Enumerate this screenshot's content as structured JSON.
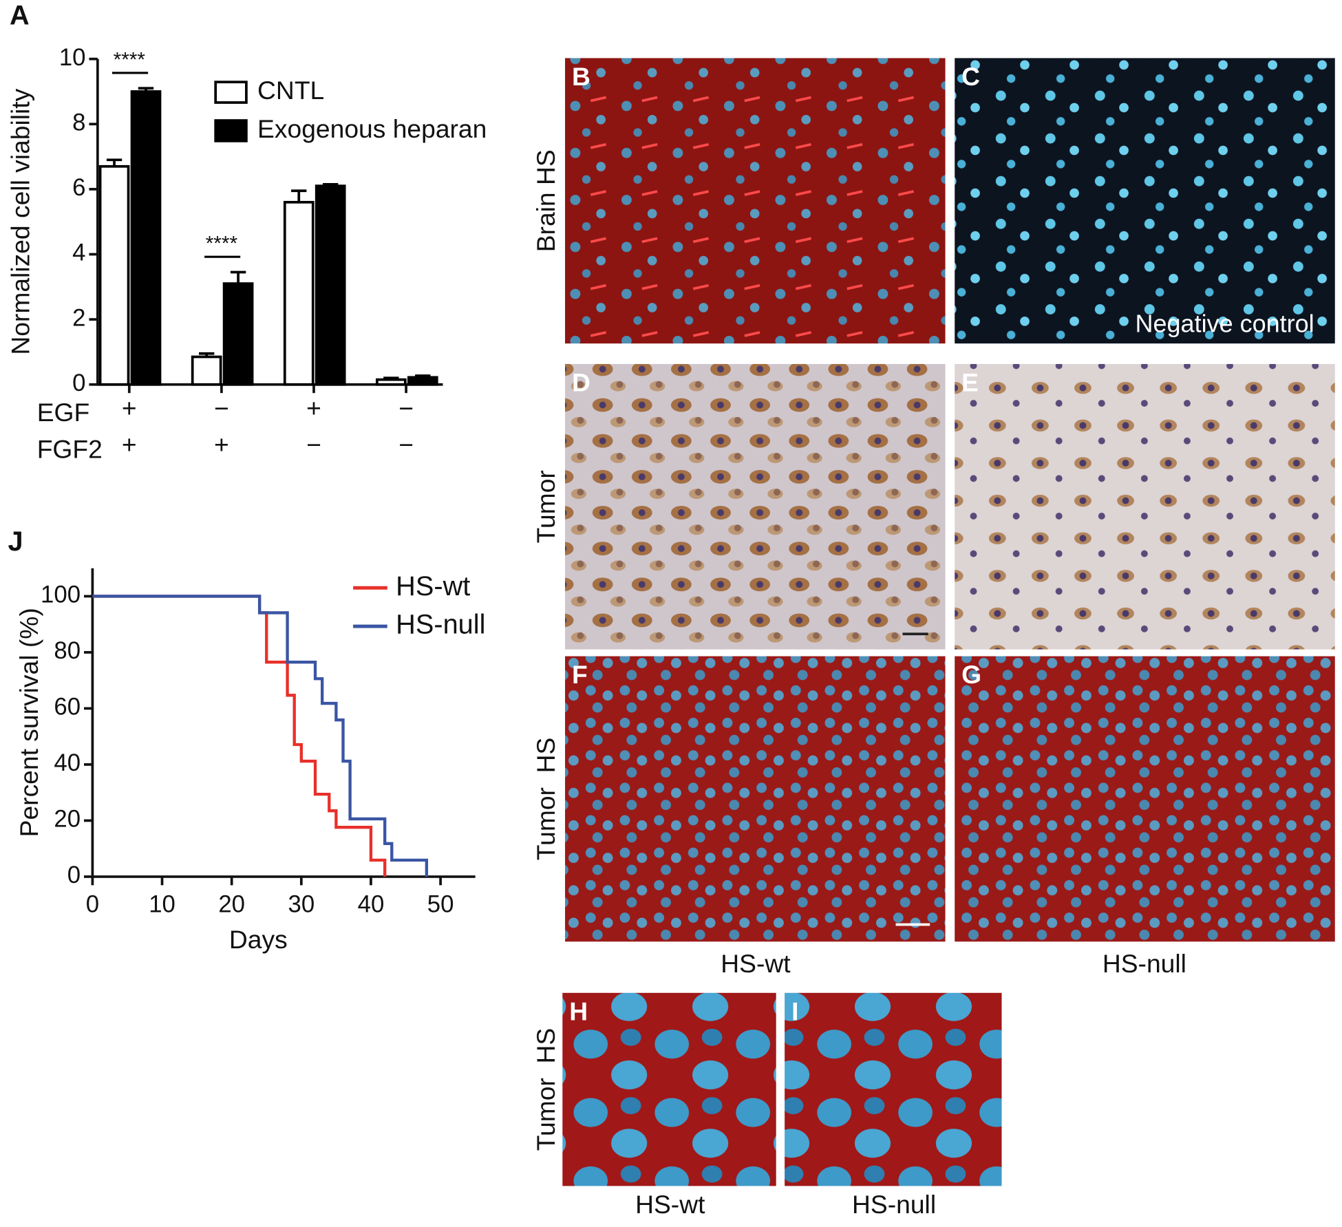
{
  "chart_data": [
    {
      "type": "bar",
      "panel": "A",
      "ylabel": "Normalized cell viability",
      "ylim": [
        0,
        10
      ],
      "yticks": [
        0,
        2,
        4,
        6,
        8,
        10
      ],
      "factors": [
        {
          "name": "EGF",
          "signs": [
            "+",
            "−",
            "+",
            "−"
          ]
        },
        {
          "name": "FGF2",
          "signs": [
            "+",
            "+",
            "−",
            "−"
          ]
        }
      ],
      "series": [
        {
          "name": "CNTL",
          "color": "#ffffff",
          "values": [
            6.7,
            0.85,
            5.6,
            0.15
          ],
          "errors": [
            0.2,
            0.1,
            0.35,
            0.05
          ]
        },
        {
          "name": "Exogenous heparan",
          "color": "#000000",
          "values": [
            9.0,
            3.1,
            6.1,
            0.22
          ],
          "errors": [
            0.1,
            0.35,
            0.05,
            0.05
          ]
        }
      ],
      "annotations": [
        {
          "text": "****",
          "category": 0
        },
        {
          "text": "****",
          "category": 1
        }
      ]
    },
    {
      "type": "line",
      "panel": "J",
      "xlabel": "Days",
      "ylabel": "Percent survival (%)",
      "xlim": [
        0,
        55
      ],
      "xticks": [
        0,
        10,
        20,
        30,
        40,
        50
      ],
      "ylim": [
        0,
        110
      ],
      "yticks": [
        0,
        20,
        40,
        60,
        80,
        100
      ],
      "series": [
        {
          "name": "HS-wt",
          "color": "#e8302a",
          "x": [
            0,
            24,
            24,
            25,
            25,
            28,
            28,
            29,
            29,
            30,
            30,
            32,
            32,
            34,
            34,
            35,
            35,
            40,
            40,
            42,
            42
          ],
          "values": [
            100,
            100,
            94.1,
            94.1,
            76.5,
            76.5,
            64.7,
            64.7,
            47.1,
            47.1,
            41.2,
            41.2,
            29.4,
            29.4,
            23.5,
            23.5,
            17.6,
            17.6,
            5.9,
            5.9,
            0
          ]
        },
        {
          "name": "HS-null",
          "color": "#3a55a4",
          "x": [
            0,
            24,
            24,
            28,
            28,
            32,
            32,
            33,
            33,
            35,
            35,
            36,
            36,
            37,
            37,
            42,
            42,
            43,
            43,
            48,
            48
          ],
          "values": [
            100,
            100,
            94.1,
            94.1,
            76.5,
            76.5,
            70.6,
            70.6,
            61.8,
            61.8,
            55.9,
            55.9,
            41.2,
            41.2,
            20.6,
            20.6,
            11.8,
            11.8,
            5.9,
            5.9,
            0
          ]
        }
      ]
    }
  ],
  "panels": {
    "letters": [
      "B",
      "C",
      "D",
      "E",
      "F",
      "G",
      "H",
      "I"
    ],
    "row_labels": [
      "Brain HS",
      "Tumor",
      "Tumor  HS",
      "Tumor  HS"
    ],
    "column_labels": [
      "HS-wt",
      "HS-null",
      "HS-wt",
      "HS-null"
    ],
    "inset": "Negative control"
  }
}
